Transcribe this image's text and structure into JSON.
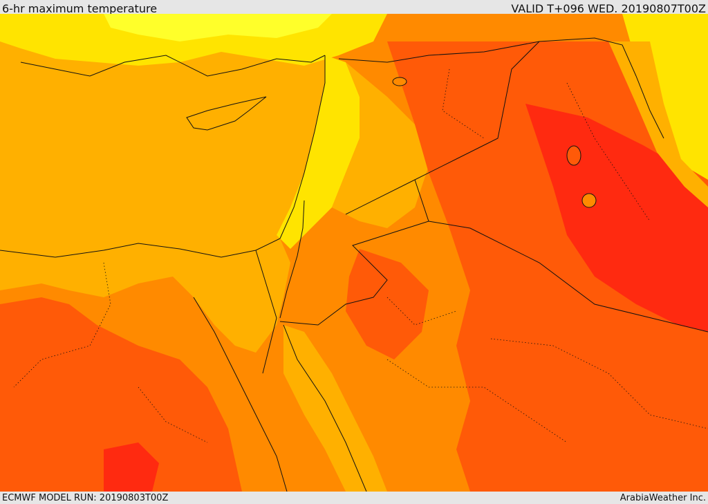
{
  "header": {
    "title": "6-hr maximum temperature",
    "valid": "VALID T+096 WED. 20190807T00Z"
  },
  "footer": {
    "model_run": "ECMWF MODEL RUN: 20190803T00Z",
    "credit": "ArabiaWeather Inc."
  },
  "colors": {
    "hot_red": "#ff2a10",
    "red_orange": "#ff5a08",
    "orange": "#ff8a00",
    "amber": "#ffb000",
    "yellow": "#ffe400",
    "pale_yellow": "#ffff2a",
    "border": "#111111"
  }
}
